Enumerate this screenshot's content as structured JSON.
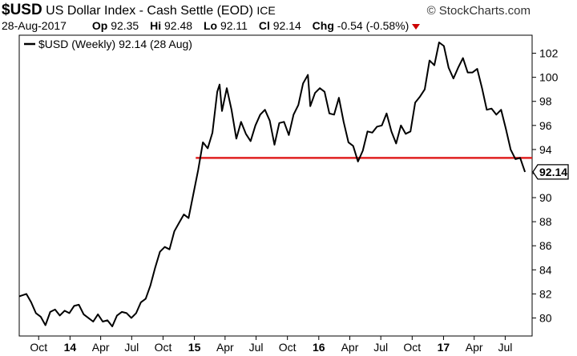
{
  "header": {
    "symbol": "$USD",
    "name": "US Dollar Index - Cash Settle (EOD)",
    "exchange": "ICE",
    "brand": "© StockCharts.com",
    "date": "28-Aug-2017",
    "open_label": "Op",
    "open": "92.35",
    "high_label": "Hi",
    "high": "92.48",
    "low_label": "Lo",
    "low": "92.11",
    "close_label": "Cl",
    "close": "92.14",
    "change_label": "Chg",
    "change": "-0.54 (-0.58%)",
    "change_color": "#cc0000"
  },
  "legend": {
    "label": "$USD (Weekly) 92.14 (28 Aug)"
  },
  "last_value_label": "92.14",
  "chart_data": {
    "type": "line",
    "ylim": [
      78.5,
      103.5
    ],
    "yticks": [
      80,
      82,
      84,
      86,
      88,
      90,
      92,
      94,
      96,
      98,
      100,
      102
    ],
    "x_tick_labels": [
      {
        "label": "Oct",
        "date": "2013-10-01"
      },
      {
        "label": "14",
        "date": "2014-01-01",
        "bold": true
      },
      {
        "label": "Apr",
        "date": "2014-04-01"
      },
      {
        "label": "Jul",
        "date": "2014-07-01"
      },
      {
        "label": "Oct",
        "date": "2014-10-01"
      },
      {
        "label": "15",
        "date": "2015-01-01",
        "bold": true
      },
      {
        "label": "Apr",
        "date": "2015-04-01"
      },
      {
        "label": "Jul",
        "date": "2015-07-01"
      },
      {
        "label": "Oct",
        "date": "2015-10-01"
      },
      {
        "label": "16",
        "date": "2016-01-01",
        "bold": true
      },
      {
        "label": "Apr",
        "date": "2016-04-01"
      },
      {
        "label": "Jul",
        "date": "2016-07-01"
      },
      {
        "label": "Oct",
        "date": "2016-10-01"
      },
      {
        "label": "17",
        "date": "2017-01-01",
        "bold": true
      },
      {
        "label": "Apr",
        "date": "2017-04-01"
      },
      {
        "label": "Jul",
        "date": "2017-07-01"
      }
    ],
    "series": [
      {
        "name": "$USD (Weekly)",
        "color": "#000000",
        "points": [
          [
            "2013-08-05",
            81.8
          ],
          [
            "2013-08-26",
            82.0
          ],
          [
            "2013-09-09",
            81.3
          ],
          [
            "2013-09-23",
            80.4
          ],
          [
            "2013-10-07",
            80.1
          ],
          [
            "2013-10-21",
            79.4
          ],
          [
            "2013-11-04",
            80.5
          ],
          [
            "2013-11-18",
            80.7
          ],
          [
            "2013-12-02",
            80.2
          ],
          [
            "2013-12-16",
            80.6
          ],
          [
            "2013-12-30",
            80.4
          ],
          [
            "2014-01-13",
            81.0
          ],
          [
            "2014-01-27",
            81.1
          ],
          [
            "2014-02-10",
            80.3
          ],
          [
            "2014-02-24",
            80.0
          ],
          [
            "2014-03-10",
            79.7
          ],
          [
            "2014-03-24",
            80.3
          ],
          [
            "2014-04-07",
            79.7
          ],
          [
            "2014-04-21",
            79.8
          ],
          [
            "2014-05-05",
            79.3
          ],
          [
            "2014-05-19",
            80.2
          ],
          [
            "2014-06-02",
            80.5
          ],
          [
            "2014-06-16",
            80.4
          ],
          [
            "2014-06-30",
            80.0
          ],
          [
            "2014-07-14",
            80.4
          ],
          [
            "2014-07-28",
            81.3
          ],
          [
            "2014-08-11",
            81.6
          ],
          [
            "2014-08-25",
            82.7
          ],
          [
            "2014-09-08",
            84.2
          ],
          [
            "2014-09-22",
            85.5
          ],
          [
            "2014-10-06",
            85.9
          ],
          [
            "2014-10-20",
            85.7
          ],
          [
            "2014-11-03",
            87.2
          ],
          [
            "2014-11-17",
            87.9
          ],
          [
            "2014-12-01",
            88.6
          ],
          [
            "2014-12-15",
            88.3
          ],
          [
            "2014-12-29",
            90.3
          ],
          [
            "2015-01-12",
            92.3
          ],
          [
            "2015-01-26",
            94.6
          ],
          [
            "2015-02-09",
            94.1
          ],
          [
            "2015-02-23",
            95.4
          ],
          [
            "2015-03-09",
            98.8
          ],
          [
            "2015-03-16",
            99.4
          ],
          [
            "2015-03-23",
            97.2
          ],
          [
            "2015-04-06",
            99.1
          ],
          [
            "2015-04-20",
            97.3
          ],
          [
            "2015-05-04",
            94.9
          ],
          [
            "2015-05-18",
            96.3
          ],
          [
            "2015-06-01",
            95.3
          ],
          [
            "2015-06-15",
            94.7
          ],
          [
            "2015-06-29",
            96.0
          ],
          [
            "2015-07-13",
            96.9
          ],
          [
            "2015-07-27",
            97.3
          ],
          [
            "2015-08-10",
            96.4
          ],
          [
            "2015-08-24",
            94.4
          ],
          [
            "2015-09-07",
            96.2
          ],
          [
            "2015-09-21",
            96.3
          ],
          [
            "2015-10-05",
            95.2
          ],
          [
            "2015-10-19",
            96.9
          ],
          [
            "2015-11-02",
            97.7
          ],
          [
            "2015-11-16",
            99.5
          ],
          [
            "2015-11-30",
            100.2
          ],
          [
            "2015-12-07",
            97.6
          ],
          [
            "2015-12-21",
            98.7
          ],
          [
            "2016-01-04",
            99.1
          ],
          [
            "2016-01-18",
            98.8
          ],
          [
            "2016-02-01",
            97.0
          ],
          [
            "2016-02-15",
            96.9
          ],
          [
            "2016-02-29",
            98.3
          ],
          [
            "2016-03-14",
            96.3
          ],
          [
            "2016-03-28",
            94.6
          ],
          [
            "2016-04-11",
            94.3
          ],
          [
            "2016-04-25",
            93.0
          ],
          [
            "2016-05-09",
            93.9
          ],
          [
            "2016-05-23",
            95.5
          ],
          [
            "2016-06-06",
            95.4
          ],
          [
            "2016-06-20",
            95.9
          ],
          [
            "2016-07-04",
            96.0
          ],
          [
            "2016-07-18",
            97.0
          ],
          [
            "2016-08-01",
            95.5
          ],
          [
            "2016-08-15",
            94.5
          ],
          [
            "2016-08-29",
            96.0
          ],
          [
            "2016-09-12",
            95.3
          ],
          [
            "2016-09-26",
            95.5
          ],
          [
            "2016-10-10",
            97.9
          ],
          [
            "2016-10-24",
            98.4
          ],
          [
            "2016-11-07",
            99.0
          ],
          [
            "2016-11-21",
            101.4
          ],
          [
            "2016-12-05",
            101.0
          ],
          [
            "2016-12-19",
            102.9
          ],
          [
            "2017-01-02",
            102.6
          ],
          [
            "2017-01-16",
            100.8
          ],
          [
            "2017-01-30",
            99.9
          ],
          [
            "2017-02-13",
            100.8
          ],
          [
            "2017-02-27",
            101.6
          ],
          [
            "2017-03-13",
            100.4
          ],
          [
            "2017-03-27",
            100.4
          ],
          [
            "2017-04-10",
            100.7
          ],
          [
            "2017-04-24",
            99.1
          ],
          [
            "2017-05-08",
            97.3
          ],
          [
            "2017-05-22",
            97.4
          ],
          [
            "2017-06-05",
            96.9
          ],
          [
            "2017-06-19",
            97.3
          ],
          [
            "2017-07-03",
            95.7
          ],
          [
            "2017-07-17",
            94.0
          ],
          [
            "2017-07-31",
            93.2
          ],
          [
            "2017-08-14",
            93.3
          ],
          [
            "2017-08-28",
            92.14
          ]
        ]
      }
    ],
    "horizontal_line": {
      "value": 93.3,
      "start": "2015-01-05",
      "color": "#e02020"
    }
  }
}
